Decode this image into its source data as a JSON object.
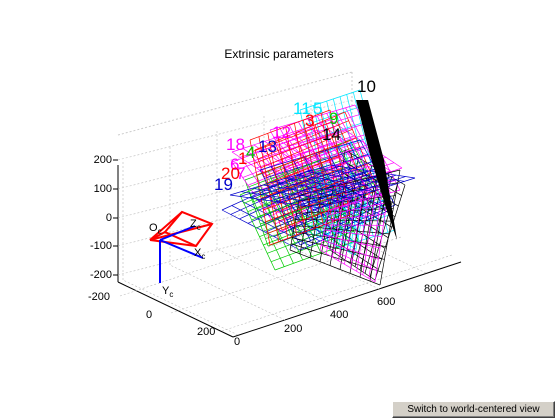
{
  "figure": {
    "title": "Extrinsic parameters",
    "button_label": "Switch to world-centered view"
  },
  "camera": {
    "origin_label": "O",
    "origin_sub": "c",
    "x_label": "X",
    "x_sub": "c",
    "y_label": "Y",
    "y_sub": "c",
    "z_label": "Z",
    "z_sub": "c"
  },
  "chart_data": {
    "type": "3d-mesh",
    "title": "Extrinsic parameters",
    "z_ticks": [
      "200",
      "100",
      "0",
      "-100",
      "-200"
    ],
    "x_ticks": [
      "-200",
      "0",
      "200"
    ],
    "y_ticks": [
      "0",
      "200",
      "400",
      "600",
      "800"
    ],
    "grid": true,
    "planes": [
      {
        "label": "10",
        "color": "#000000"
      },
      {
        "label": "11",
        "color": "#00e5ff"
      },
      {
        "label": "5",
        "color": "#00e5ff"
      },
      {
        "label": "3",
        "color": "#ff0000"
      },
      {
        "label": "9",
        "color": "#00cc00"
      },
      {
        "label": "14",
        "color": "#000000"
      },
      {
        "label": "12",
        "color": "#ff00ff"
      },
      {
        "label": "13",
        "color": "#0000cc"
      },
      {
        "label": "18",
        "color": "#ff00ff"
      },
      {
        "label": "4",
        "color": "#00cc00"
      },
      {
        "label": "1",
        "color": "#ff0000"
      },
      {
        "label": "6",
        "color": "#ff00ff"
      },
      {
        "label": "20",
        "color": "#ff0000"
      },
      {
        "label": "7",
        "color": "#ff00ff"
      },
      {
        "label": "19",
        "color": "#0000cc"
      }
    ]
  }
}
